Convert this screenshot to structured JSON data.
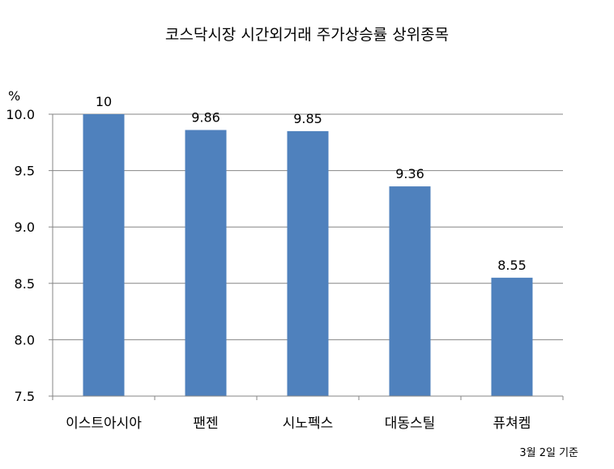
{
  "chart_data": {
    "type": "bar",
    "title": "코스닥시장 시간외거래  주가상승률 상위종목",
    "ylabel": "%",
    "categories": [
      "이스트아시아",
      "팬젠",
      "시노펙스",
      "대동스틸",
      "퓨쳐켐"
    ],
    "values": [
      10,
      9.86,
      9.85,
      9.36,
      8.55
    ],
    "data_labels": [
      "10",
      "9.86",
      "9.85",
      "9.36",
      "8.55"
    ],
    "ylim": [
      7.5,
      10.0
    ],
    "yticks": [
      "7.5",
      "8.0",
      "8.5",
      "9.0",
      "9.5",
      "10.0"
    ],
    "grid": true,
    "legend": "none",
    "bar_color": "#4f81bd",
    "note": "3월 2일 기준"
  }
}
